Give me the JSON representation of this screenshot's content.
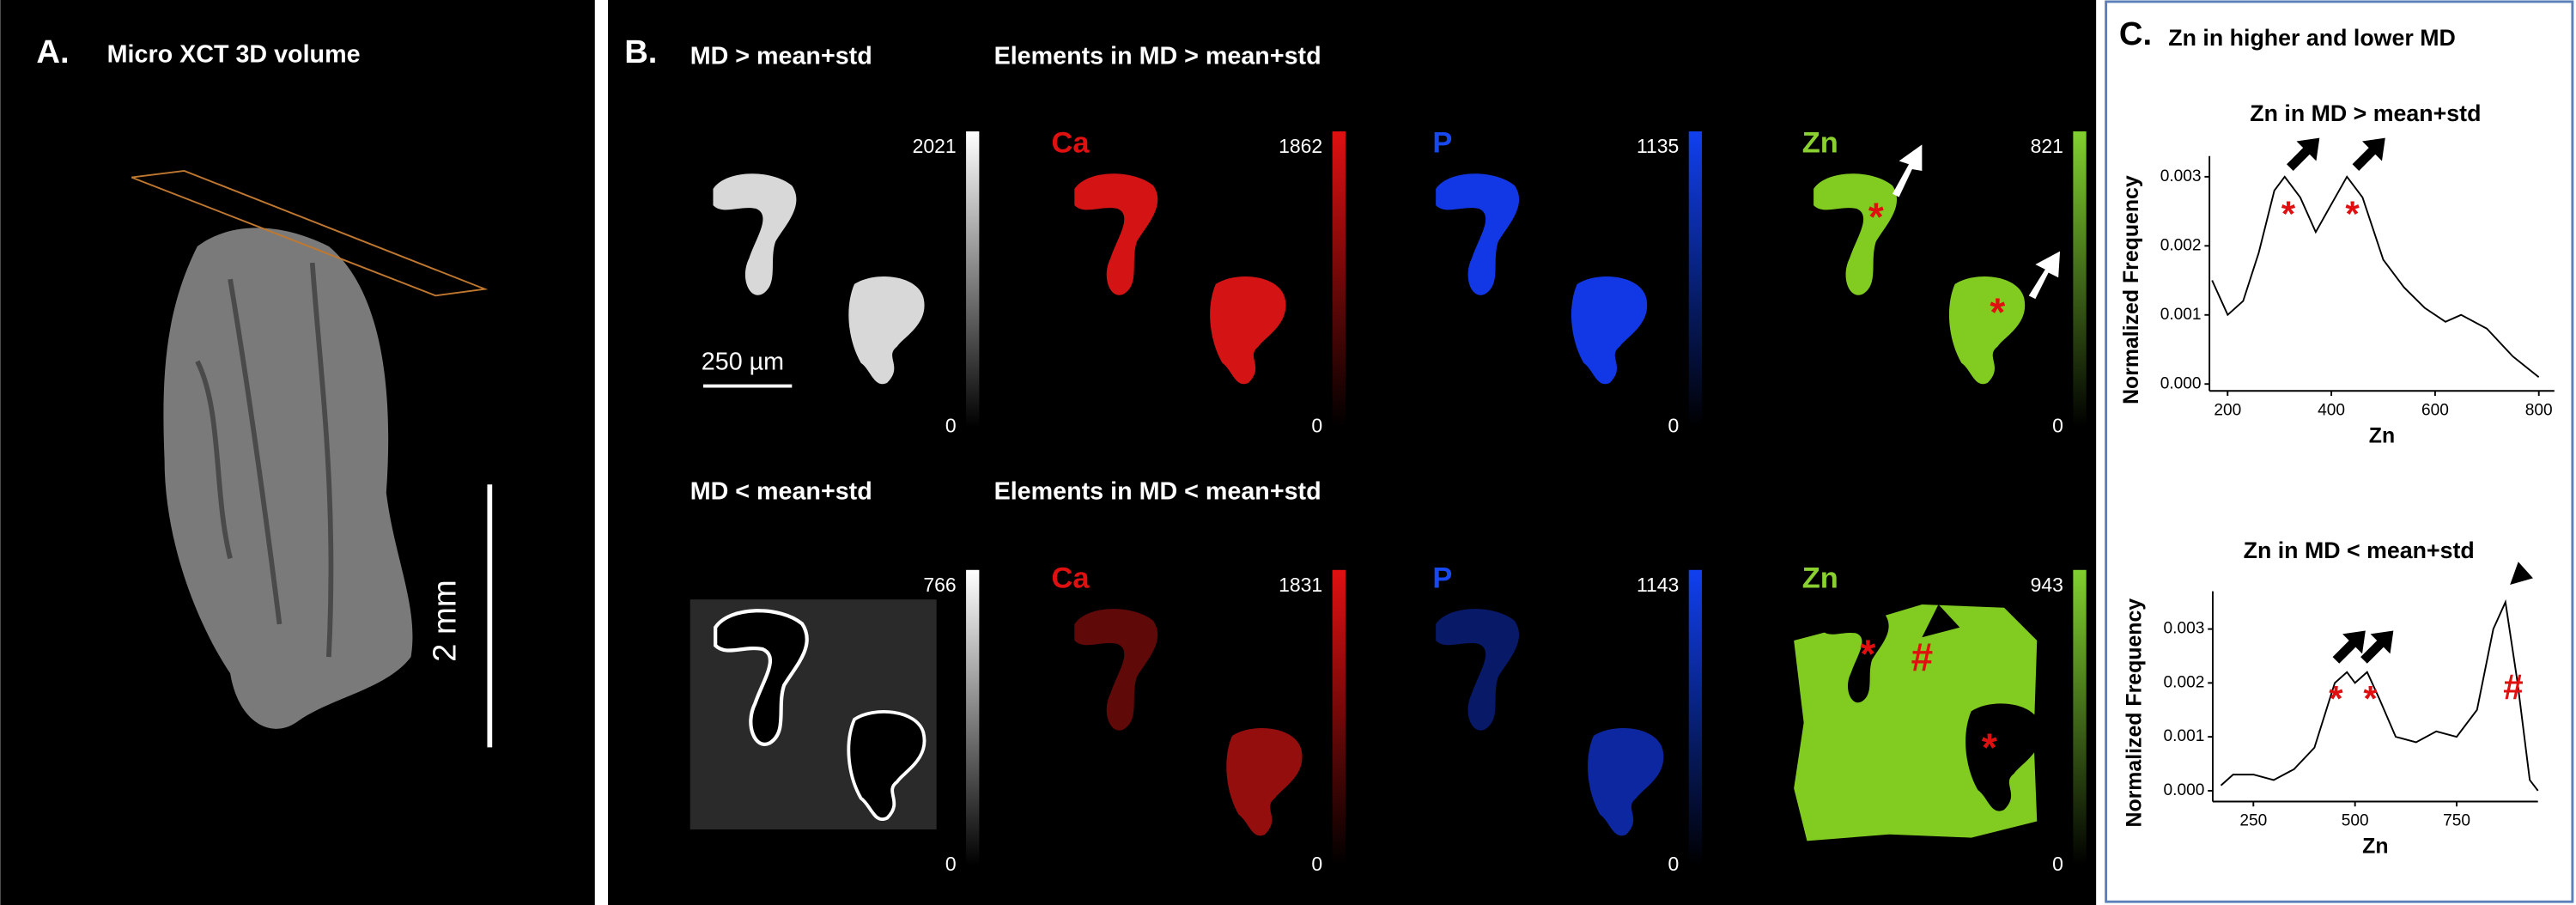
{
  "panel_a": {
    "label": "A.",
    "title": "Micro XCT 3D volume",
    "scale_bar": "2 mm"
  },
  "panel_b": {
    "label": "B.",
    "scale_bar": "250 µm",
    "rows": [
      {
        "title": "MD > mean+std",
        "elements_title": "Elements in MD > mean+std",
        "maps": [
          {
            "max": 2021,
            "min": 0
          },
          {
            "name": "Ca",
            "max": 1862,
            "min": 0
          },
          {
            "name": "P",
            "max": 1135,
            "min": 0
          },
          {
            "name": "Zn",
            "max": 821,
            "min": 0,
            "markers": [
              "*",
              "*"
            ]
          }
        ]
      },
      {
        "title": "MD < mean+std",
        "elements_title": "Elements in MD < mean+std",
        "maps": [
          {
            "max": 766,
            "min": 0
          },
          {
            "name": "Ca",
            "max": 1831,
            "min": 0
          },
          {
            "name": "P",
            "max": 1143,
            "min": 0
          },
          {
            "name": "Zn",
            "max": 943,
            "min": 0,
            "markers": [
              "*",
              "#",
              "*"
            ]
          }
        ]
      }
    ]
  },
  "panel_c": {
    "label": "C.",
    "title": "Zn in higher and lower MD",
    "charts": [
      {
        "type": "line",
        "title": "Zn in MD > mean+std",
        "x_label": "Zn",
        "y_label": "Normalized Frequency",
        "color": "#000000",
        "x": [
          170,
          200,
          230,
          260,
          290,
          310,
          340,
          370,
          400,
          430,
          460,
          500,
          540,
          580,
          620,
          650,
          700,
          750,
          800
        ],
        "values": [
          0.0015,
          0.001,
          0.0012,
          0.0019,
          0.0028,
          0.003,
          0.0027,
          0.0022,
          0.0026,
          0.003,
          0.0027,
          0.0018,
          0.0014,
          0.0011,
          0.0009,
          0.001,
          0.0008,
          0.0004,
          0.0001
        ],
        "xlim": [
          165,
          830
        ],
        "ylim": [
          -0.0001,
          0.0033
        ],
        "xticks": [
          200,
          400,
          600,
          800
        ],
        "yticks": [
          {
            "value": 0,
            "label": "0.000"
          },
          {
            "value": 0.001,
            "label": "0.001"
          },
          {
            "value": 0.002,
            "label": "0.002"
          },
          {
            "value": 0.003,
            "label": "0.003"
          }
        ],
        "markers": [
          "*",
          "*"
        ]
      },
      {
        "type": "line",
        "title": "Zn in MD < mean+std",
        "x_label": "Zn",
        "y_label": "Normalized Frequency",
        "color": "#000000",
        "x": [
          170,
          200,
          250,
          300,
          350,
          400,
          450,
          480,
          500,
          530,
          560,
          600,
          650,
          700,
          750,
          800,
          840,
          870,
          900,
          930,
          950
        ],
        "values": [
          0.0001,
          0.0003,
          0.0003,
          0.0002,
          0.0004,
          0.0008,
          0.002,
          0.0022,
          0.002,
          0.0022,
          0.0017,
          0.001,
          0.0009,
          0.0011,
          0.001,
          0.0015,
          0.003,
          0.0035,
          0.002,
          0.0002,
          0
        ],
        "xlim": [
          150,
          950
        ],
        "ylim": [
          -0.0002,
          0.0037
        ],
        "xticks": [
          250,
          500,
          750
        ],
        "yticks": [
          {
            "value": 0,
            "label": "0.000"
          },
          {
            "value": 0.001,
            "label": "0.001"
          },
          {
            "value": 0.002,
            "label": "0.002"
          },
          {
            "value": 0.003,
            "label": "0.003"
          }
        ],
        "markers": [
          "*",
          "*",
          "#"
        ]
      }
    ]
  }
}
